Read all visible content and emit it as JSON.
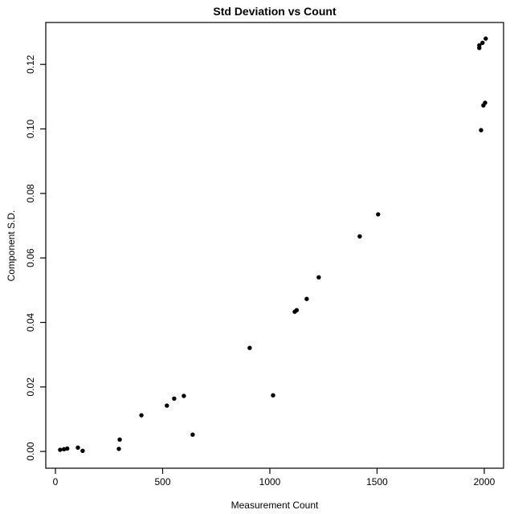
{
  "chart_data": {
    "type": "scatter",
    "title": "Std Deviation vs Count",
    "xlabel": "Measurement Count",
    "ylabel": "Component S.D.",
    "x_ticks": {
      "values": [
        0,
        500,
        1000,
        1500,
        2000
      ],
      "labels": [
        "0",
        "500",
        "1000",
        "1500",
        "2000"
      ]
    },
    "y_ticks": {
      "values": [
        0.0,
        0.02,
        0.04,
        0.06,
        0.08,
        0.1,
        0.12
      ],
      "labels": [
        "0.00",
        "0.02",
        "0.04",
        "0.06",
        "0.08",
        "0.10",
        "0.12"
      ]
    },
    "xlim": [
      -45,
      2090
    ],
    "ylim": [
      -0.0052,
      0.133
    ],
    "grid": false,
    "legend_position": "none",
    "marker": {
      "shape": "circle-filled",
      "color": "#000000",
      "radius_px": 2.7
    },
    "points": [
      [
        22,
        0.0005
      ],
      [
        40,
        0.0007
      ],
      [
        55,
        0.0009
      ],
      [
        105,
        0.0012
      ],
      [
        127,
        0.0002
      ],
      [
        296,
        0.0008
      ],
      [
        300,
        0.0037
      ],
      [
        401,
        0.0112
      ],
      [
        520,
        0.0142
      ],
      [
        554,
        0.0164
      ],
      [
        599,
        0.0172
      ],
      [
        640,
        0.0052
      ],
      [
        906,
        0.0321
      ],
      [
        1015,
        0.0174
      ],
      [
        1116,
        0.0433
      ],
      [
        1125,
        0.0438
      ],
      [
        1172,
        0.0473
      ],
      [
        1228,
        0.054
      ],
      [
        1419,
        0.0667
      ],
      [
        1505,
        0.0735
      ],
      [
        1985,
        0.0996
      ],
      [
        1996,
        0.1073
      ],
      [
        2004,
        0.1081
      ],
      [
        1977,
        0.1251
      ],
      [
        1977,
        0.1259
      ],
      [
        1992,
        0.1267
      ],
      [
        2007,
        0.128
      ]
    ]
  },
  "colors": {
    "background": "#ffffff",
    "axis": "#000000",
    "text": "#000000",
    "point": "#000000"
  }
}
